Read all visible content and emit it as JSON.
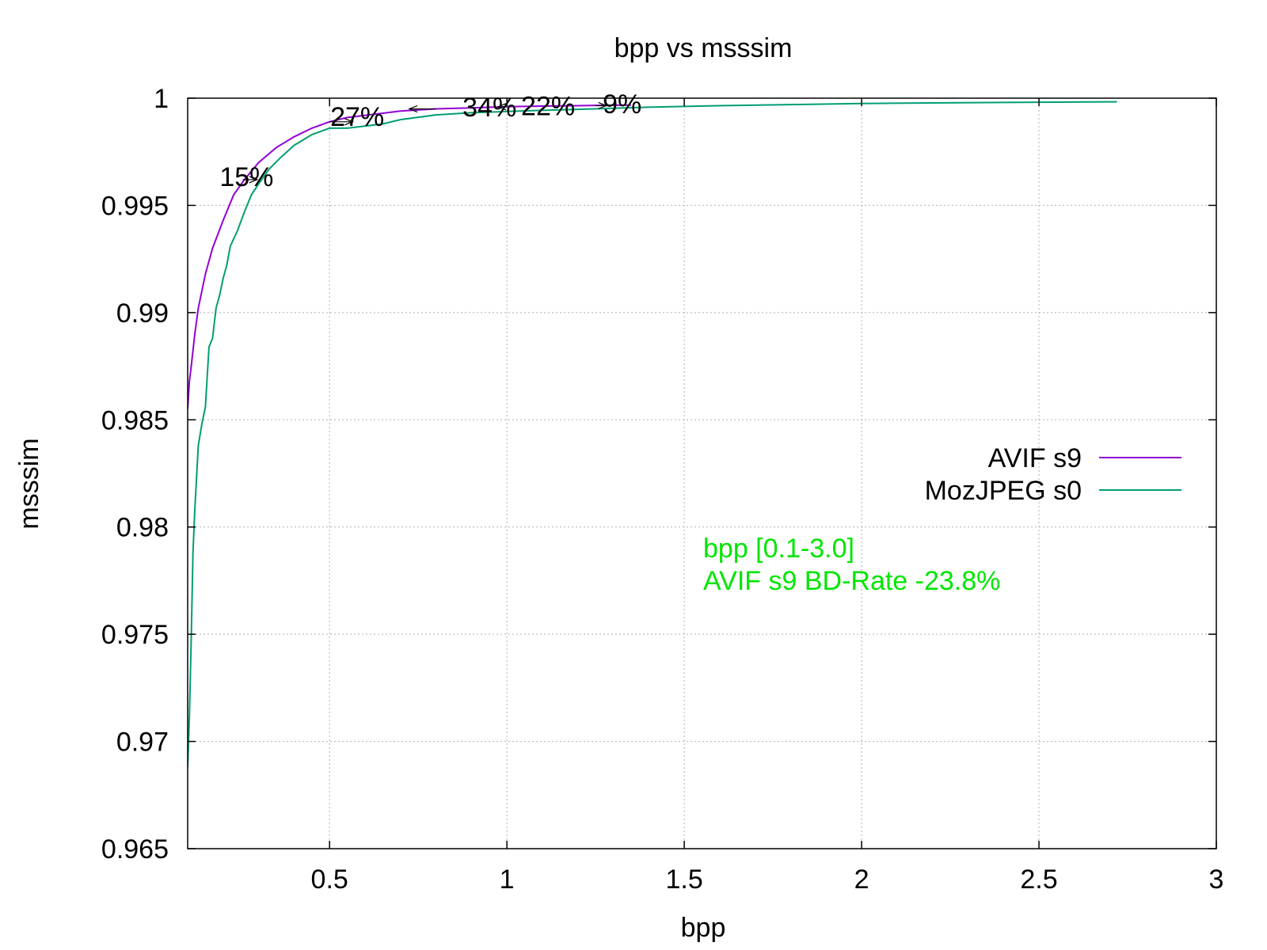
{
  "chart_data": {
    "type": "line",
    "title": "bpp vs msssim",
    "xlabel": "bpp",
    "ylabel": "msssim",
    "xlim": [
      0.1,
      3.0
    ],
    "ylim": [
      0.965,
      1.0
    ],
    "x_ticks": [
      0.5,
      1,
      1.5,
      2,
      2.5,
      3
    ],
    "x_tick_labels": [
      "0.5",
      "1",
      "1.5",
      "2",
      "2.5",
      "3"
    ],
    "y_ticks": [
      0.965,
      0.97,
      0.975,
      0.98,
      0.985,
      0.99,
      0.995,
      1.0
    ],
    "y_tick_labels": [
      "0.965",
      "0.97",
      "0.975",
      "0.98",
      "0.985",
      "0.99",
      "0.995",
      "1"
    ],
    "grid": true,
    "legend_position": "right",
    "series": [
      {
        "name": "AVIF s9",
        "color": "#9400d3",
        "x": [
          0.1,
          0.105,
          0.11,
          0.12,
          0.13,
          0.15,
          0.17,
          0.2,
          0.23,
          0.26,
          0.3,
          0.35,
          0.4,
          0.45,
          0.5,
          0.55,
          0.6,
          0.7,
          0.8,
          0.9,
          1.0,
          1.1,
          1.2,
          1.3,
          1.35
        ],
        "y": [
          0.9855,
          0.9868,
          0.9875,
          0.989,
          0.9902,
          0.9918,
          0.993,
          0.9943,
          0.9955,
          0.9962,
          0.997,
          0.9977,
          0.9982,
          0.9986,
          0.9989,
          0.9991,
          0.9992,
          0.9994,
          0.9995,
          0.99955,
          0.9996,
          0.99963,
          0.99965,
          0.99967,
          0.99968
        ]
      },
      {
        "name": "MozJPEG s0",
        "color": "#009e73",
        "x": [
          0.1,
          0.105,
          0.11,
          0.115,
          0.12,
          0.13,
          0.14,
          0.15,
          0.16,
          0.17,
          0.18,
          0.19,
          0.2,
          0.21,
          0.22,
          0.24,
          0.26,
          0.28,
          0.3,
          0.33,
          0.36,
          0.4,
          0.45,
          0.5,
          0.55,
          0.6,
          0.65,
          0.7,
          0.8,
          0.9,
          1.0,
          1.1,
          1.2,
          1.4,
          1.6,
          1.8,
          2.0,
          2.2,
          2.4,
          2.6,
          2.72
        ],
        "y": [
          0.9688,
          0.9712,
          0.9748,
          0.9788,
          0.9808,
          0.9838,
          0.9848,
          0.9856,
          0.9884,
          0.9888,
          0.9902,
          0.9908,
          0.9916,
          0.9922,
          0.9931,
          0.9938,
          0.9947,
          0.9955,
          0.996,
          0.9967,
          0.9972,
          0.9978,
          0.9983,
          0.9986,
          0.9986,
          0.9987,
          0.9988,
          0.999,
          0.99922,
          0.99932,
          0.99938,
          0.99943,
          0.99948,
          0.99958,
          0.99965,
          0.9997,
          0.99975,
          0.99978,
          0.9998,
          0.99982,
          0.99983
        ]
      }
    ],
    "annotations": [
      {
        "text": "15%",
        "x": 0.255,
        "y": 0.9962,
        "label_x": 0.19,
        "label_y": 0.99635,
        "arrow_to_x": 0.296
      },
      {
        "text": "27%",
        "x": 0.5,
        "y": 0.9989,
        "label_x": 0.502,
        "label_y": 0.99915,
        "arrow_to_x": 0.565
      },
      {
        "text": "34%",
        "x": 0.8,
        "y": 0.9995,
        "label_x": 0.875,
        "label_y": 0.9996,
        "arrow_to_x": 0.725
      },
      {
        "text": "22%",
        "x": 1.0,
        "y": 0.9996,
        "label_x": 1.04,
        "label_y": 0.99965,
        "arrow_to_x": 0.975
      },
      {
        "text": "9%",
        "x": 1.25,
        "y": 0.99965,
        "label_x": 1.27,
        "label_y": 0.99975,
        "arrow_to_x": 1.28
      }
    ],
    "bd_rate_text": {
      "lines": [
        "bpp [0.1-3.0]",
        "AVIF s9 BD-Rate -23.8%"
      ],
      "color": "#00e600"
    }
  }
}
